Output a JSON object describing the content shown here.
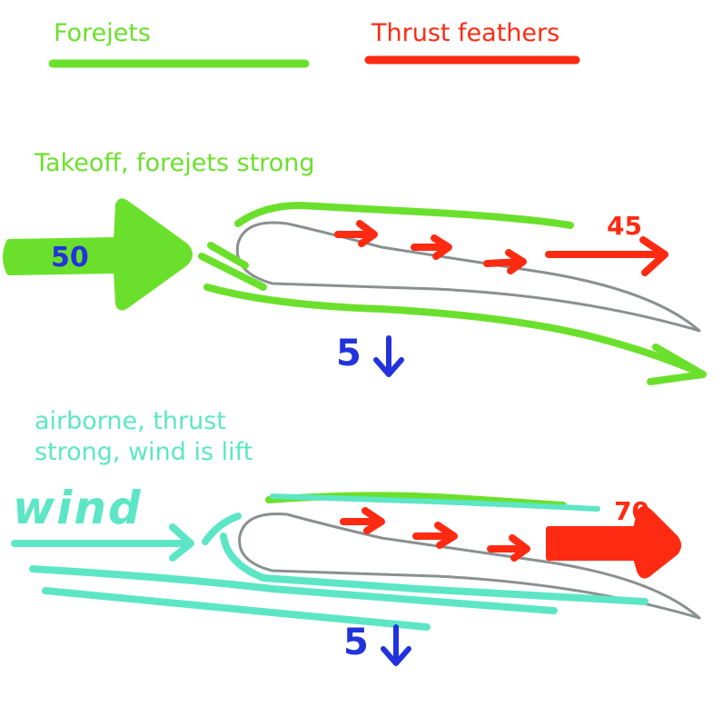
{
  "legend": {
    "forejets_label": "Forejets",
    "thrust_label": "Thrust feathers"
  },
  "panel_takeoff": {
    "caption": "Takeoff, forejets strong",
    "input_value": "50",
    "output_value": "45",
    "down_value": "5"
  },
  "panel_airborne": {
    "caption_line1": "airborne, thrust",
    "caption_line2": "strong, wind is lift",
    "wind_label": "wind",
    "output_value": "70",
    "down_value": "5"
  },
  "colors": {
    "forejets": "#6be02c",
    "thrust": "#ff2a12",
    "wind": "#5ce6c5",
    "force": "#2233dd",
    "wing": "#8a9090"
  }
}
